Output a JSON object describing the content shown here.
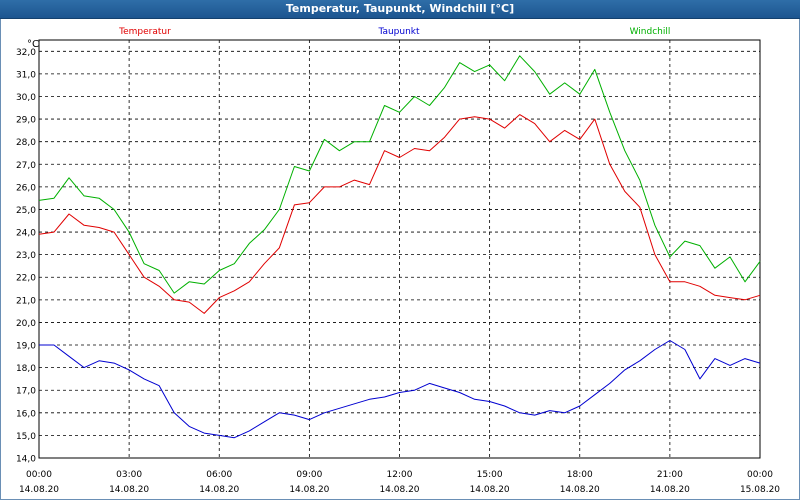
{
  "window": {
    "title": "Temperatur, Taupunkt, Windchill [°C]"
  },
  "chart_data": {
    "type": "line",
    "title": "Temperatur, Taupunkt, Windchill [°C]",
    "ylabel": "°C",
    "ylim": [
      14.0,
      32.5
    ],
    "grid": true,
    "legend_placement": "top",
    "x_ticks": [
      {
        "hour": 0,
        "time": "00:00",
        "date": "14.08.20"
      },
      {
        "hour": 3,
        "time": "03:00",
        "date": "14.08.20"
      },
      {
        "hour": 6,
        "time": "06:00",
        "date": "14.08.20"
      },
      {
        "hour": 9,
        "time": "09:00",
        "date": "14.08.20"
      },
      {
        "hour": 12,
        "time": "12:00",
        "date": "14.08.20"
      },
      {
        "hour": 15,
        "time": "15:00",
        "date": "14.08.20"
      },
      {
        "hour": 18,
        "time": "18:00",
        "date": "14.08.20"
      },
      {
        "hour": 21,
        "time": "21:00",
        "date": "14.08.20"
      },
      {
        "hour": 24,
        "time": "00:00",
        "date": "15.08.20"
      }
    ],
    "y_ticks": [
      "14,0",
      "15,0",
      "16,0",
      "17,0",
      "18,0",
      "19,0",
      "20,0",
      "21,0",
      "22,0",
      "23,0",
      "24,0",
      "25,0",
      "26,0",
      "27,0",
      "28,0",
      "29,0",
      "30,0",
      "31,0",
      "32,0"
    ],
    "series": [
      {
        "name": "Temperatur",
        "color": "#e00000",
        "x": [
          0,
          0.5,
          1,
          1.5,
          2,
          2.5,
          3,
          3.5,
          4,
          4.5,
          5,
          5.5,
          6,
          6.5,
          7,
          7.5,
          8,
          8.5,
          9,
          9.5,
          10,
          10.5,
          11,
          11.5,
          12,
          12.5,
          13,
          13.5,
          14,
          14.5,
          15,
          15.5,
          16,
          16.5,
          17,
          17.5,
          18,
          18.5,
          19,
          19.5,
          20,
          20.5,
          21,
          21.5,
          22,
          22.5,
          23,
          23.5,
          24
        ],
        "values": [
          23.9,
          24.0,
          24.8,
          24.3,
          24.2,
          24.0,
          23.0,
          22.0,
          21.6,
          21.0,
          20.9,
          20.4,
          21.1,
          21.4,
          21.8,
          22.6,
          23.3,
          25.2,
          25.3,
          26.0,
          26.0,
          26.3,
          26.1,
          27.6,
          27.3,
          27.7,
          27.6,
          28.2,
          29.0,
          29.1,
          29.0,
          28.6,
          29.2,
          28.8,
          28.0,
          28.5,
          28.1,
          29.0,
          27.0,
          25.8,
          25.1,
          23.0,
          21.8,
          21.8,
          21.6,
          21.2,
          21.1,
          21.0,
          21.2
        ]
      },
      {
        "name": "Taupunkt",
        "color": "#0000d0",
        "x": [
          0,
          0.5,
          1,
          1.5,
          2,
          2.5,
          3,
          3.5,
          4,
          4.5,
          5,
          5.5,
          6,
          6.5,
          7,
          7.5,
          8,
          8.5,
          9,
          9.5,
          10,
          10.5,
          11,
          11.5,
          12,
          12.5,
          13,
          13.5,
          14,
          14.5,
          15,
          15.5,
          16,
          16.5,
          17,
          17.5,
          18,
          18.5,
          19,
          19.5,
          20,
          20.5,
          21,
          21.5,
          22,
          22.5,
          23,
          23.5,
          24
        ],
        "values": [
          19.0,
          19.0,
          18.5,
          18.0,
          18.3,
          18.2,
          17.9,
          17.5,
          17.2,
          16.0,
          15.4,
          15.1,
          15.0,
          14.9,
          15.2,
          15.6,
          16.0,
          15.9,
          15.7,
          16.0,
          16.2,
          16.4,
          16.6,
          16.7,
          16.9,
          17.0,
          17.3,
          17.1,
          16.9,
          16.6,
          16.5,
          16.3,
          16.0,
          15.9,
          16.1,
          16.0,
          16.3,
          16.8,
          17.3,
          17.9,
          18.3,
          18.8,
          19.2,
          18.8,
          17.5,
          18.4,
          18.1,
          18.4,
          18.2
        ]
      },
      {
        "name": "Windchill",
        "color": "#00b000",
        "x": [
          0,
          0.5,
          1,
          1.5,
          2,
          2.5,
          3,
          3.5,
          4,
          4.5,
          5,
          5.5,
          6,
          6.5,
          7,
          7.5,
          8,
          8.5,
          9,
          9.5,
          10,
          10.5,
          11,
          11.5,
          12,
          12.5,
          13,
          13.5,
          14,
          14.5,
          15,
          15.5,
          16,
          16.5,
          17,
          17.5,
          18,
          18.5,
          19,
          19.5,
          20,
          20.5,
          21,
          21.5,
          22,
          22.5,
          23,
          23.5,
          24
        ],
        "values": [
          25.4,
          25.5,
          26.4,
          25.6,
          25.5,
          25.0,
          24.0,
          22.6,
          22.3,
          21.3,
          21.8,
          21.7,
          22.3,
          22.6,
          23.5,
          24.1,
          25.0,
          26.9,
          26.7,
          28.1,
          27.6,
          28.0,
          28.0,
          29.6,
          29.3,
          30.0,
          29.6,
          30.4,
          31.5,
          31.1,
          31.4,
          30.7,
          31.8,
          31.1,
          30.1,
          30.6,
          30.1,
          31.2,
          29.3,
          27.6,
          26.3,
          24.3,
          22.9,
          23.6,
          23.4,
          22.4,
          22.9,
          21.8,
          22.7
        ]
      }
    ]
  }
}
